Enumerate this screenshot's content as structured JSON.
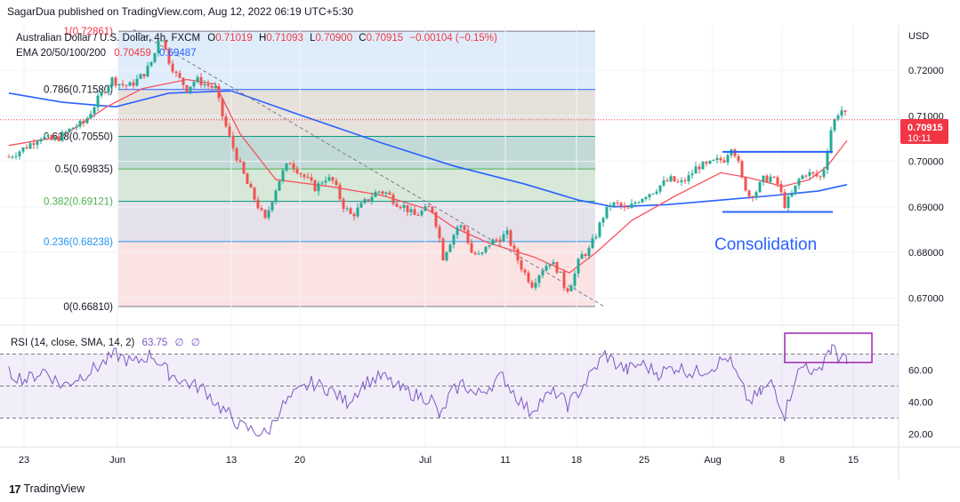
{
  "header": {
    "published": "SagarDua published on TradingView.com, Aug 12, 2022 06:19 UTC+5:30"
  },
  "footer": {
    "brand": "TradingView",
    "logo": "tradingview-logo-icon"
  },
  "colors": {
    "price": "#f23645",
    "ema20": "#f7525f",
    "ema100": "#2962ff",
    "trend": "#787b86",
    "up": "#26a69a",
    "upBody": "#22ab94",
    "down": "#ef5350",
    "rsi": "#7e57c2",
    "box": "#9c27b0",
    "annot": "#2962ff"
  },
  "legend": {
    "symbol": "Australian Dollar / U.S. Dollar, 4h, FXCM",
    "o_label": "O",
    "o": "0.71019",
    "h_label": "H",
    "h": "0.71093",
    "l_label": "L",
    "l": "0.70900",
    "c_label": "C",
    "c": "0.70915",
    "change": "−0.00104 (−0.15%)",
    "ema_label": "EMA 20/50/100/200",
    "ema20": "0.70459",
    "ema100": "0.69487"
  },
  "annotation": {
    "text": "Consolidation"
  },
  "rsi_legend": {
    "label": "RSI (14, close, SMA, 14, 2)",
    "value": "63.75",
    "na1": "∅",
    "na2": "∅"
  },
  "chart_data": {
    "type": "candlestick",
    "symbol": "AUD/USD",
    "timeframe": "4h",
    "price_axis": {
      "unit": "USD",
      "ticks": [
        "0.72000",
        "0.71000",
        "0.70000",
        "0.69000",
        "0.68000",
        "0.67000"
      ],
      "range": [
        0.664,
        0.73
      ]
    },
    "current_price": {
      "value": "0.70915",
      "countdown": "10:11"
    },
    "x_ticks": [
      "23",
      "Jun",
      "13",
      "20",
      "Jul",
      "11",
      "18",
      "25",
      "Aug",
      "8",
      "15"
    ],
    "fibonacci": [
      {
        "ratio": "1",
        "price": "0.72861",
        "label": "1(0.72861)",
        "fill": "#c5dff5"
      },
      {
        "ratio": "0.786",
        "price": "0.71580",
        "label": "0.786(0.71580)",
        "fill": "#d4c9bf"
      },
      {
        "ratio": "0.618",
        "price": "0.70550",
        "label": "0.618(0.70550)",
        "fill": "#8fbcb6"
      },
      {
        "ratio": "0.5",
        "price": "0.69835",
        "label": "0.5(0.69835)",
        "fill": "#b6d4b8"
      },
      {
        "ratio": "0.382",
        "price": "0.69121",
        "label": "0.382(0.69121)",
        "fill": "#cfc9d9"
      },
      {
        "ratio": "0.236",
        "price": "0.68238",
        "label": "0.236(0.68238)",
        "fill": "#f7cccd"
      },
      {
        "ratio": "0",
        "price": "0.66810",
        "label": "0(0.66810)",
        "fill": ""
      }
    ],
    "price_path": [
      [
        0,
        0.701
      ],
      [
        18,
        0.703
      ],
      [
        35,
        0.7055
      ],
      [
        50,
        0.7045
      ],
      [
        62,
        0.706
      ],
      [
        72,
        0.7075
      ],
      [
        85,
        0.7085
      ],
      [
        98,
        0.713
      ],
      [
        108,
        0.716
      ],
      [
        116,
        0.718
      ],
      [
        125,
        0.717
      ],
      [
        135,
        0.7165
      ],
      [
        145,
        0.718
      ],
      [
        155,
        0.72
      ],
      [
        163,
        0.723
      ],
      [
        170,
        0.7286
      ],
      [
        178,
        0.723
      ],
      [
        188,
        0.719
      ],
      [
        200,
        0.716
      ],
      [
        210,
        0.718
      ],
      [
        220,
        0.717
      ],
      [
        232,
        0.716
      ],
      [
        240,
        0.71
      ],
      [
        250,
        0.704
      ],
      [
        260,
        0.699
      ],
      [
        268,
        0.695
      ],
      [
        278,
        0.691
      ],
      [
        288,
        0.687
      ],
      [
        298,
        0.693
      ],
      [
        306,
        0.697
      ],
      [
        316,
        0.7
      ],
      [
        325,
        0.698
      ],
      [
        335,
        0.696
      ],
      [
        345,
        0.694
      ],
      [
        355,
        0.6965
      ],
      [
        365,
        0.6955
      ],
      [
        375,
        0.6905
      ],
      [
        385,
        0.688
      ],
      [
        395,
        0.69
      ],
      [
        405,
        0.692
      ],
      [
        415,
        0.6935
      ],
      [
        425,
        0.693
      ],
      [
        435,
        0.691
      ],
      [
        445,
        0.69
      ],
      [
        455,
        0.688
      ],
      [
        465,
        0.689
      ],
      [
        475,
        0.69
      ],
      [
        482,
        0.685
      ],
      [
        488,
        0.679
      ],
      [
        495,
        0.682
      ],
      [
        505,
        0.686
      ],
      [
        512,
        0.685
      ],
      [
        520,
        0.68
      ],
      [
        530,
        0.679
      ],
      [
        540,
        0.682
      ],
      [
        550,
        0.683
      ],
      [
        560,
        0.684
      ],
      [
        568,
        0.68
      ],
      [
        578,
        0.676
      ],
      [
        588,
        0.673
      ],
      [
        598,
        0.676
      ],
      [
        608,
        0.678
      ],
      [
        618,
        0.676
      ],
      [
        626,
        0.6715
      ],
      [
        634,
        0.674
      ],
      [
        642,
        0.679
      ],
      [
        652,
        0.6805
      ],
      [
        660,
        0.684
      ],
      [
        668,
        0.688
      ],
      [
        676,
        0.6905
      ],
      [
        686,
        0.6905
      ],
      [
        694,
        0.689
      ],
      [
        704,
        0.691
      ],
      [
        714,
        0.6925
      ],
      [
        724,
        0.6935
      ],
      [
        734,
        0.695
      ],
      [
        744,
        0.696
      ],
      [
        754,
        0.695
      ],
      [
        764,
        0.6965
      ],
      [
        774,
        0.699
      ],
      [
        784,
        0.699
      ],
      [
        794,
        0.7
      ],
      [
        804,
        0.7005
      ],
      [
        812,
        0.7035
      ],
      [
        818,
        0.701
      ],
      [
        824,
        0.696
      ],
      [
        832,
        0.6925
      ],
      [
        840,
        0.6935
      ],
      [
        848,
        0.696
      ],
      [
        856,
        0.6965
      ],
      [
        864,
        0.695
      ],
      [
        872,
        0.6905
      ],
      [
        880,
        0.6925
      ],
      [
        888,
        0.696
      ],
      [
        896,
        0.6975
      ],
      [
        904,
        0.697
      ],
      [
        912,
        0.6965
      ],
      [
        918,
        0.6995
      ],
      [
        922,
        0.706
      ],
      [
        928,
        0.709
      ],
      [
        934,
        0.7115
      ],
      [
        938,
        0.711
      ],
      [
        942,
        0.7092
      ]
    ],
    "series": [
      {
        "name": "EMA 20",
        "points": [
          [
            0,
            0.7035
          ],
          [
            60,
            0.7055
          ],
          [
            110,
            0.712
          ],
          [
            150,
            0.716
          ],
          [
            200,
            0.718
          ],
          [
            232,
            0.717
          ],
          [
            260,
            0.706
          ],
          [
            300,
            0.696
          ],
          [
            360,
            0.6945
          ],
          [
            420,
            0.6925
          ],
          [
            470,
            0.6895
          ],
          [
            500,
            0.6855
          ],
          [
            540,
            0.682
          ],
          [
            590,
            0.679
          ],
          [
            630,
            0.6755
          ],
          [
            660,
            0.68
          ],
          [
            700,
            0.687
          ],
          [
            750,
            0.6925
          ],
          [
            800,
            0.6975
          ],
          [
            830,
            0.6965
          ],
          [
            870,
            0.6945
          ],
          [
            900,
            0.696
          ],
          [
            920,
            0.699
          ],
          [
            942,
            0.7046
          ]
        ]
      },
      {
        "name": "EMA 100",
        "points": [
          [
            0,
            0.715
          ],
          [
            60,
            0.713
          ],
          [
            120,
            0.712
          ],
          [
            180,
            0.715
          ],
          [
            250,
            0.7155
          ],
          [
            330,
            0.71
          ],
          [
            420,
            0.704
          ],
          [
            500,
            0.699
          ],
          [
            580,
            0.695
          ],
          [
            640,
            0.6915
          ],
          [
            680,
            0.69
          ],
          [
            740,
            0.6905
          ],
          [
            800,
            0.6915
          ],
          [
            860,
            0.6925
          ],
          [
            910,
            0.6935
          ],
          [
            942,
            0.6949
          ]
        ]
      }
    ],
    "trendline": [
      [
        140,
        0.729
      ],
      [
        670,
        0.668
      ]
    ],
    "consolidation_lines": [
      {
        "from": 812,
        "to": 936,
        "price": 0.7021
      },
      {
        "from": 812,
        "to": 936,
        "price": 0.6889
      }
    ],
    "rsi": {
      "ticks": [
        "60.00",
        "40.00",
        "20.00"
      ],
      "bands": [
        70,
        50,
        30
      ],
      "path": [
        [
          0,
          58
        ],
        [
          20,
          54
        ],
        [
          40,
          60
        ],
        [
          60,
          50
        ],
        [
          80,
          56
        ],
        [
          100,
          62
        ],
        [
          120,
          70
        ],
        [
          140,
          64
        ],
        [
          160,
          70
        ],
        [
          180,
          58
        ],
        [
          200,
          52
        ],
        [
          220,
          48
        ],
        [
          235,
          38
        ],
        [
          248,
          32
        ],
        [
          260,
          25
        ],
        [
          275,
          22
        ],
        [
          290,
          20
        ],
        [
          305,
          36
        ],
        [
          320,
          44
        ],
        [
          340,
          52
        ],
        [
          360,
          48
        ],
        [
          380,
          40
        ],
        [
          400,
          52
        ],
        [
          420,
          56
        ],
        [
          440,
          48
        ],
        [
          460,
          44
        ],
        [
          475,
          42
        ],
        [
          485,
          30
        ],
        [
          495,
          44
        ],
        [
          510,
          52
        ],
        [
          525,
          44
        ],
        [
          540,
          50
        ],
        [
          555,
          56
        ],
        [
          570,
          44
        ],
        [
          585,
          34
        ],
        [
          600,
          42
        ],
        [
          615,
          46
        ],
        [
          628,
          38
        ],
        [
          640,
          46
        ],
        [
          655,
          58
        ],
        [
          670,
          70
        ],
        [
          682,
          64
        ],
        [
          695,
          60
        ],
        [
          710,
          64
        ],
        [
          730,
          58
        ],
        [
          750,
          62
        ],
        [
          770,
          58
        ],
        [
          790,
          62
        ],
        [
          808,
          68
        ],
        [
          820,
          54
        ],
        [
          832,
          40
        ],
        [
          845,
          46
        ],
        [
          858,
          52
        ],
        [
          872,
          32
        ],
        [
          884,
          56
        ],
        [
          896,
          64
        ],
        [
          908,
          56
        ],
        [
          918,
          70
        ],
        [
          925,
          74
        ],
        [
          932,
          68
        ],
        [
          938,
          68
        ],
        [
          942,
          63.75
        ]
      ]
    }
  }
}
